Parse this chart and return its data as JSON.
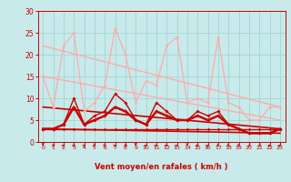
{
  "background_color": "#c8eaea",
  "grid_color": "#a8d8d8",
  "xlabel": "Vent moyen/en rafales ( km/h )",
  "xlabel_color": "#cc0000",
  "tick_color": "#cc0000",
  "xlim": [
    -0.5,
    23.5
  ],
  "ylim": [
    0,
    30
  ],
  "yticks": [
    0,
    5,
    10,
    15,
    20,
    25,
    30
  ],
  "xticks": [
    0,
    1,
    2,
    3,
    4,
    5,
    6,
    7,
    8,
    9,
    10,
    11,
    12,
    13,
    14,
    15,
    16,
    17,
    18,
    19,
    20,
    21,
    22,
    23
  ],
  "series": [
    {
      "x": [
        0,
        1,
        2,
        3,
        4,
        5,
        6,
        7,
        8,
        9,
        10,
        11,
        12,
        13,
        14,
        15,
        16,
        17,
        18,
        19,
        20,
        21,
        22,
        23
      ],
      "y": [
        3,
        3,
        3,
        3,
        3,
        3,
        3,
        3,
        3,
        3,
        3,
        3,
        3,
        3,
        3,
        3,
        3,
        3,
        3,
        3,
        3,
        3,
        3,
        3
      ],
      "color": "#cc0000",
      "linewidth": 1.0,
      "marker": "D",
      "markersize": 1.8
    },
    {
      "x": [
        0,
        1,
        2,
        3,
        4,
        5,
        6,
        7,
        8,
        9,
        10,
        11,
        12,
        13,
        14,
        15,
        16,
        17,
        18,
        19,
        20,
        21,
        22,
        23
      ],
      "y": [
        15,
        8,
        22,
        25,
        7,
        9,
        13,
        26,
        20,
        9,
        14,
        13,
        22,
        24,
        9,
        10,
        9,
        24,
        9,
        8,
        5,
        5,
        8,
        8
      ],
      "color": "#ffaaaa",
      "linewidth": 0.9,
      "marker": "D",
      "markersize": 1.8
    },
    {
      "x": [
        0,
        23
      ],
      "y": [
        15,
        5
      ],
      "color": "#ffaaaa",
      "linewidth": 1.0,
      "marker": null,
      "markersize": 0
    },
    {
      "x": [
        0,
        23
      ],
      "y": [
        22,
        8
      ],
      "color": "#ffaaaa",
      "linewidth": 1.0,
      "marker": null,
      "markersize": 0
    },
    {
      "x": [
        0,
        1,
        2,
        3,
        4,
        5,
        6,
        7,
        8,
        9,
        10,
        11,
        12,
        13,
        14,
        15,
        16,
        17,
        18,
        19,
        20,
        21,
        22,
        23
      ],
      "y": [
        3,
        3,
        4,
        10,
        4,
        6,
        7,
        11,
        9,
        5,
        4,
        9,
        7,
        5,
        5,
        7,
        6,
        7,
        4,
        3,
        2,
        2,
        2,
        3
      ],
      "color": "#cc0000",
      "linewidth": 1.0,
      "marker": "D",
      "markersize": 2.0
    },
    {
      "x": [
        0,
        1,
        2,
        3,
        4,
        5,
        6,
        7,
        8,
        9,
        10,
        11,
        12,
        13,
        14,
        15,
        16,
        17,
        18,
        19,
        20,
        21,
        22,
        23
      ],
      "y": [
        3,
        3,
        4,
        8,
        4,
        5,
        6,
        8,
        7,
        5,
        4,
        7,
        6,
        5,
        5,
        6,
        5,
        6,
        4,
        3,
        2,
        2,
        2,
        3
      ],
      "color": "#cc0000",
      "linewidth": 1.8,
      "marker": "D",
      "markersize": 2.0
    },
    {
      "x": [
        0,
        23
      ],
      "y": [
        8,
        3
      ],
      "color": "#cc0000",
      "linewidth": 1.2,
      "marker": null,
      "markersize": 0
    },
    {
      "x": [
        0,
        23
      ],
      "y": [
        3,
        2
      ],
      "color": "#cc0000",
      "linewidth": 1.2,
      "marker": null,
      "markersize": 0
    }
  ],
  "wind_arrows": {
    "x": [
      0,
      1,
      2,
      3,
      4,
      5,
      6,
      7,
      8,
      9,
      10,
      11,
      12,
      13,
      14,
      15,
      16,
      17,
      18,
      19,
      20,
      21,
      22,
      23
    ],
    "angles": [
      270,
      0,
      45,
      45,
      45,
      315,
      45,
      45,
      0,
      270,
      45,
      45,
      45,
      45,
      270,
      45,
      45,
      315,
      315,
      315,
      225,
      225,
      180,
      45
    ],
    "color": "#cc0000"
  }
}
